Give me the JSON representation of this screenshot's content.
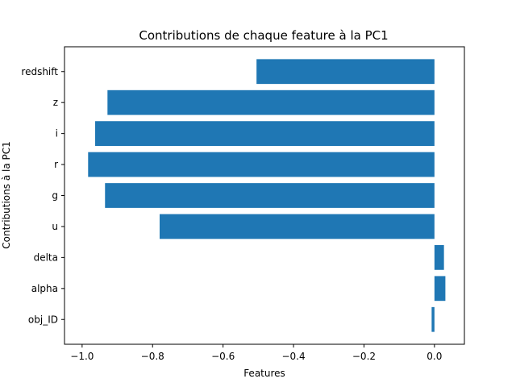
{
  "chart_data": {
    "type": "bar",
    "orientation": "horizontal",
    "title": "Contributions de chaque feature à la PC1",
    "xlabel": "Features",
    "ylabel": "Contributions à la PC1",
    "categories": [
      "obj_ID",
      "alpha",
      "delta",
      "u",
      "g",
      "r",
      "i",
      "z",
      "redshift"
    ],
    "values": [
      -0.008,
      0.031,
      0.027,
      -0.78,
      -0.935,
      -0.983,
      -0.963,
      -0.928,
      -0.505
    ],
    "xlim": [
      -1.05,
      0.085
    ],
    "xticks": [
      -1.0,
      -0.8,
      -0.6,
      -0.4,
      -0.2,
      0.0
    ],
    "xtick_labels": [
      "−1.0",
      "−0.8",
      "−0.6",
      "−0.4",
      "−0.2",
      "0.0"
    ],
    "bar_color": "#1f77b4",
    "grid": false,
    "legend": "none"
  }
}
